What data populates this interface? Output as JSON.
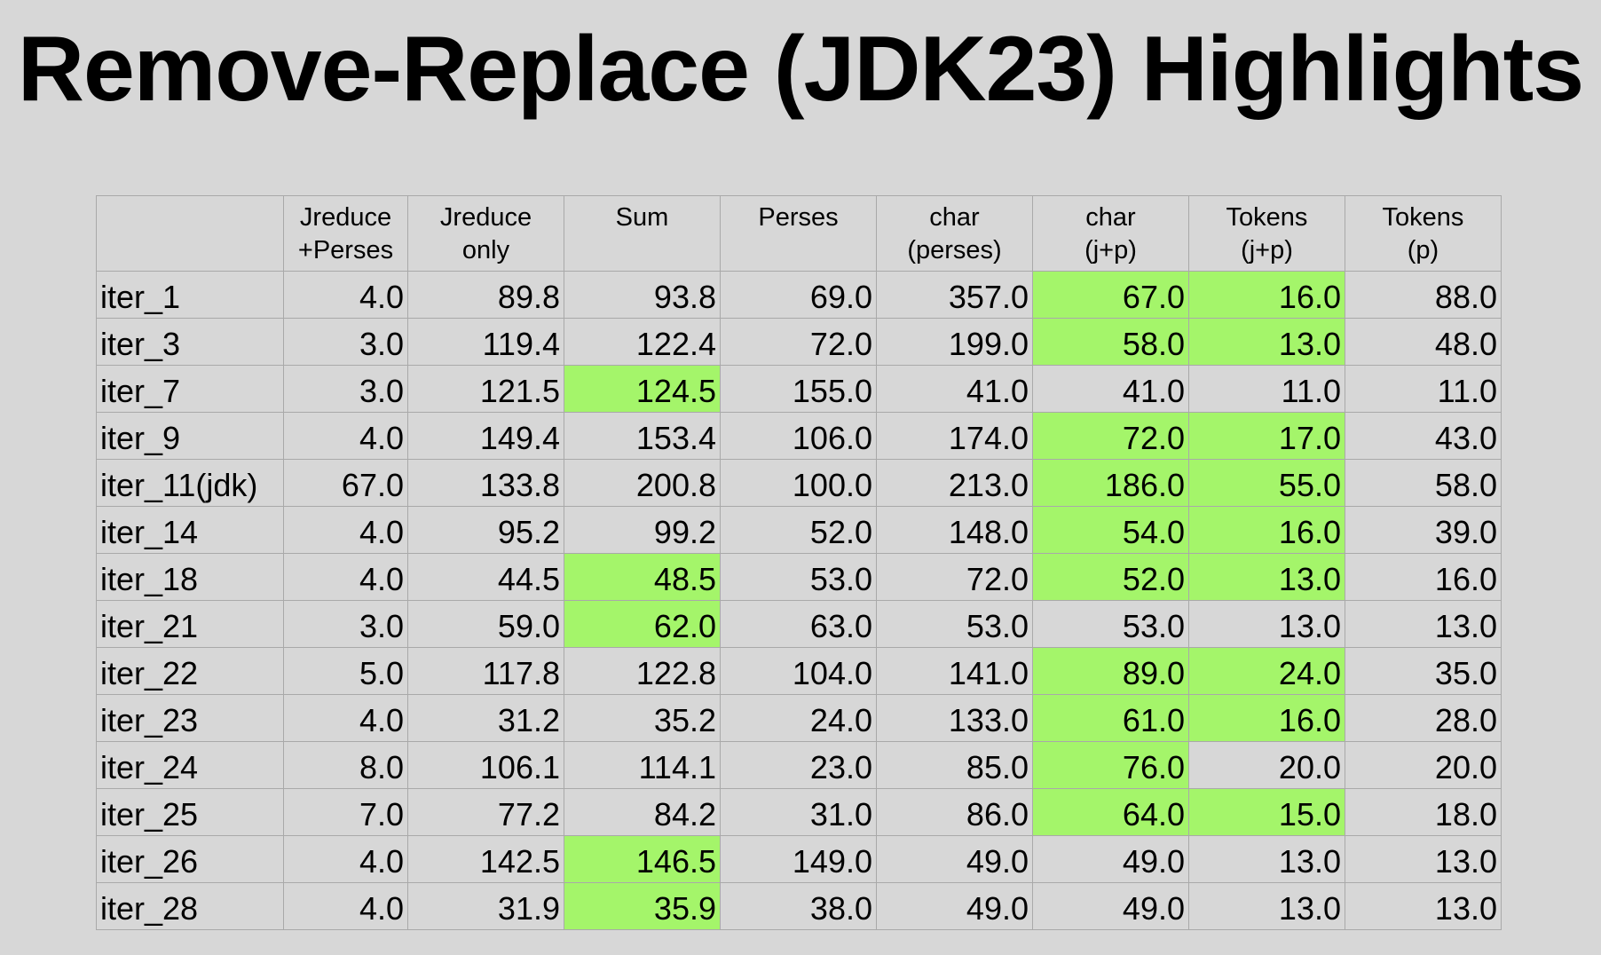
{
  "title": "Remove-Replace (JDK23) Highlights",
  "highlight_color": "#a4f56a",
  "table": {
    "columns": [
      "",
      "Jreduce\n+Perses",
      "Jreduce\nonly",
      "Sum",
      "Perses",
      "char\n(perses)",
      "char\n(j+p)",
      "Tokens\n(j+p)",
      "Tokens\n(p)"
    ],
    "rows": [
      {
        "cells": [
          "iter_1",
          "4.0",
          "89.8",
          "93.8",
          "69.0",
          "357.0",
          "67.0",
          "16.0",
          "88.0"
        ],
        "highlight": [
          false,
          false,
          false,
          false,
          false,
          false,
          true,
          true,
          false
        ]
      },
      {
        "cells": [
          "iter_3",
          "3.0",
          "119.4",
          "122.4",
          "72.0",
          "199.0",
          "58.0",
          "13.0",
          "48.0"
        ],
        "highlight": [
          false,
          false,
          false,
          false,
          false,
          false,
          true,
          true,
          false
        ]
      },
      {
        "cells": [
          "iter_7",
          "3.0",
          "121.5",
          "124.5",
          "155.0",
          "41.0",
          "41.0",
          "11.0",
          "11.0"
        ],
        "highlight": [
          false,
          false,
          false,
          true,
          false,
          false,
          false,
          false,
          false
        ]
      },
      {
        "cells": [
          "iter_9",
          "4.0",
          "149.4",
          "153.4",
          "106.0",
          "174.0",
          "72.0",
          "17.0",
          "43.0"
        ],
        "highlight": [
          false,
          false,
          false,
          false,
          false,
          false,
          true,
          true,
          false
        ]
      },
      {
        "cells": [
          "iter_11(jdk)",
          "67.0",
          "133.8",
          "200.8",
          "100.0",
          "213.0",
          "186.0",
          "55.0",
          "58.0"
        ],
        "highlight": [
          false,
          false,
          false,
          false,
          false,
          false,
          true,
          true,
          false
        ]
      },
      {
        "cells": [
          "iter_14",
          "4.0",
          "95.2",
          "99.2",
          "52.0",
          "148.0",
          "54.0",
          "16.0",
          "39.0"
        ],
        "highlight": [
          false,
          false,
          false,
          false,
          false,
          false,
          true,
          true,
          false
        ]
      },
      {
        "cells": [
          "iter_18",
          "4.0",
          "44.5",
          "48.5",
          "53.0",
          "72.0",
          "52.0",
          "13.0",
          "16.0"
        ],
        "highlight": [
          false,
          false,
          false,
          true,
          false,
          false,
          true,
          true,
          false
        ]
      },
      {
        "cells": [
          "iter_21",
          "3.0",
          "59.0",
          "62.0",
          "63.0",
          "53.0",
          "53.0",
          "13.0",
          "13.0"
        ],
        "highlight": [
          false,
          false,
          false,
          true,
          false,
          false,
          false,
          false,
          false
        ]
      },
      {
        "cells": [
          "iter_22",
          "5.0",
          "117.8",
          "122.8",
          "104.0",
          "141.0",
          "89.0",
          "24.0",
          "35.0"
        ],
        "highlight": [
          false,
          false,
          false,
          false,
          false,
          false,
          true,
          true,
          false
        ]
      },
      {
        "cells": [
          "iter_23",
          "4.0",
          "31.2",
          "35.2",
          "24.0",
          "133.0",
          "61.0",
          "16.0",
          "28.0"
        ],
        "highlight": [
          false,
          false,
          false,
          false,
          false,
          false,
          true,
          true,
          false
        ]
      },
      {
        "cells": [
          "iter_24",
          "8.0",
          "106.1",
          "114.1",
          "23.0",
          "85.0",
          "76.0",
          "20.0",
          "20.0"
        ],
        "highlight": [
          false,
          false,
          false,
          false,
          false,
          false,
          true,
          false,
          false
        ]
      },
      {
        "cells": [
          "iter_25",
          "7.0",
          "77.2",
          "84.2",
          "31.0",
          "86.0",
          "64.0",
          "15.0",
          "18.0"
        ],
        "highlight": [
          false,
          false,
          false,
          false,
          false,
          false,
          true,
          true,
          false
        ]
      },
      {
        "cells": [
          "iter_26",
          "4.0",
          "142.5",
          "146.5",
          "149.0",
          "49.0",
          "49.0",
          "13.0",
          "13.0"
        ],
        "highlight": [
          false,
          false,
          false,
          true,
          false,
          false,
          false,
          false,
          false
        ]
      },
      {
        "cells": [
          "iter_28",
          "4.0",
          "31.9",
          "35.9",
          "38.0",
          "49.0",
          "49.0",
          "13.0",
          "13.0"
        ],
        "highlight": [
          false,
          false,
          false,
          true,
          false,
          false,
          false,
          false,
          false
        ]
      }
    ]
  }
}
